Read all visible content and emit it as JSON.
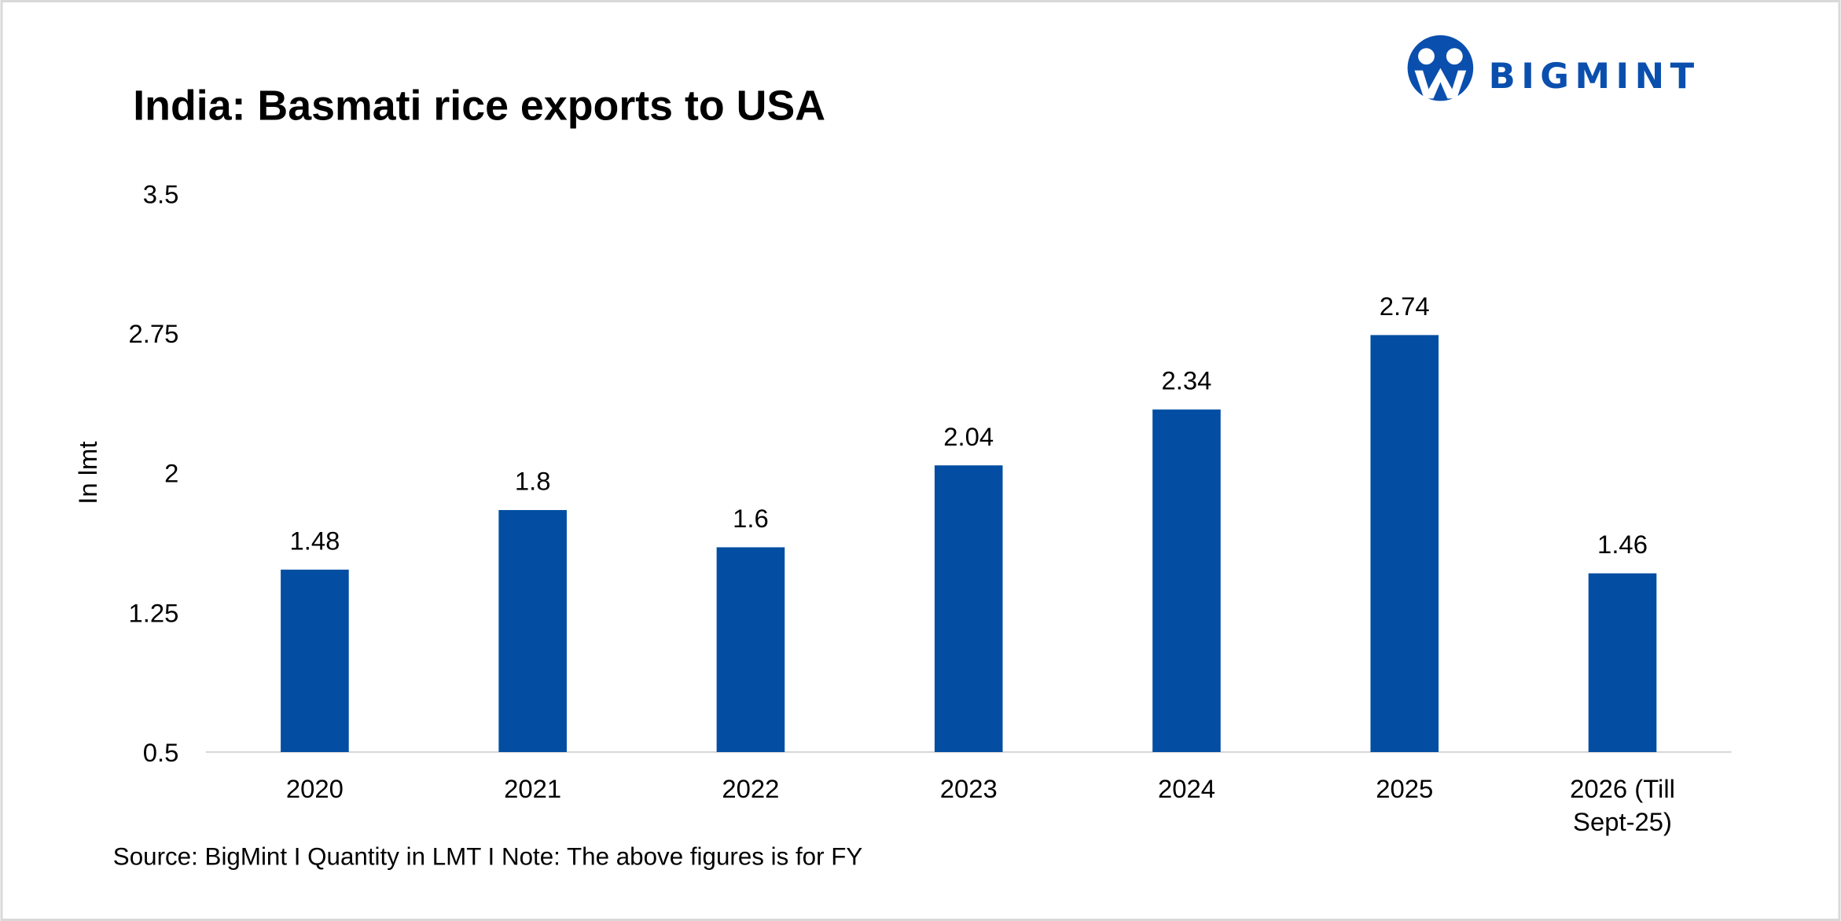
{
  "chart_data": {
    "type": "bar",
    "title": "India: Basmati rice exports to USA",
    "ylabel": "In lmt",
    "xlabel": "",
    "categories": [
      "2020",
      "2021",
      "2022",
      "2023",
      "2024",
      "2025",
      "2026 (Till Sept-25)"
    ],
    "category_lines": [
      [
        "2020"
      ],
      [
        "2021"
      ],
      [
        "2022"
      ],
      [
        "2023"
      ],
      [
        "2024"
      ],
      [
        "2025"
      ],
      [
        "2026 (Till",
        "Sept-25)"
      ]
    ],
    "values": [
      1.48,
      1.8,
      1.6,
      2.04,
      2.34,
      2.74,
      1.46
    ],
    "data_labels": [
      "1.48",
      "1.8",
      "1.6",
      "2.04",
      "2.34",
      "2.74",
      "1.46"
    ],
    "ylim": [
      0.5,
      3.5
    ],
    "yticks": [
      0.5,
      1.25,
      2,
      2.75,
      3.5
    ],
    "ytick_labels": [
      "0.5",
      "1.25",
      "2",
      "2.75",
      "3.5"
    ],
    "grid": false,
    "bar_color": "#034ea2",
    "source": "Source: BigMint I Quantity in LMT I Note: The above figures is for FY"
  },
  "logo": {
    "text": "BIGMINT",
    "color": "#0a4fae"
  }
}
